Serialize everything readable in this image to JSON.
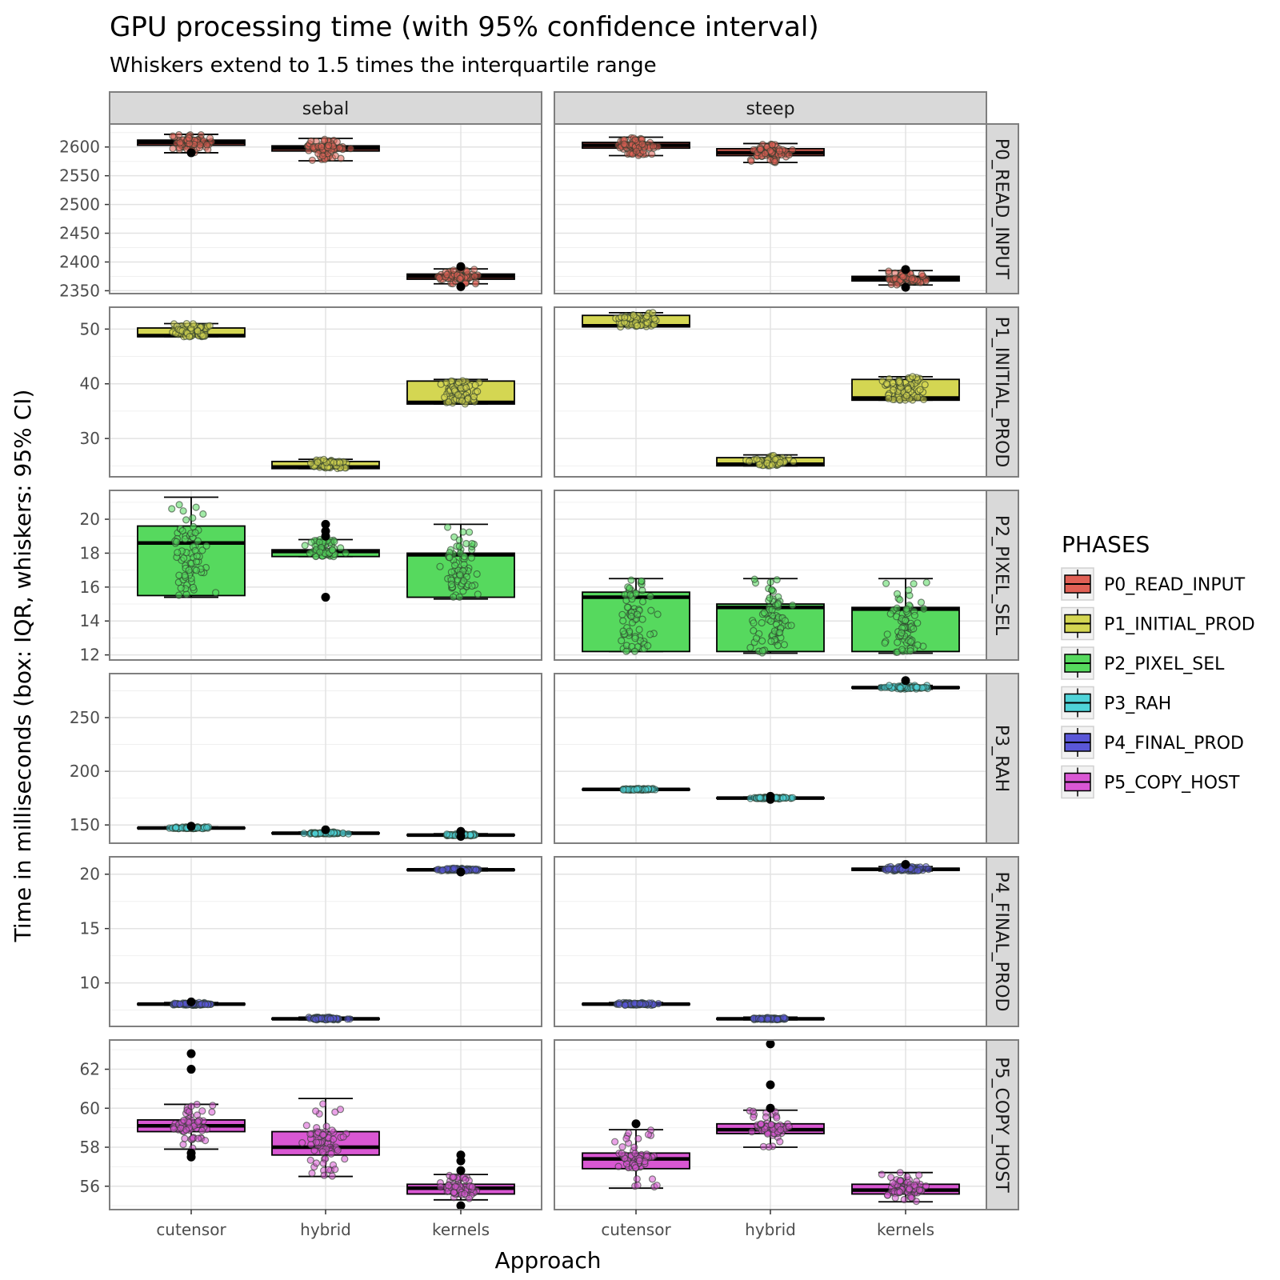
{
  "chart_data": {
    "type": "boxplot",
    "title": "GPU processing time (with 95% confidence interval)",
    "subtitle": "Whiskers extend to 1.5 times the interquartile range",
    "xlabel": "Approach",
    "ylabel": "Time in milliseconds (box: IQR, whiskers: 95% CI)",
    "legend": {
      "title": "PHASES",
      "position": "right"
    },
    "grid": true,
    "columns": [
      "sebal",
      "steep"
    ],
    "categories": [
      "cutensor",
      "hybrid",
      "kernels"
    ],
    "panels": [
      {
        "phase": "P0_READ_INPUT",
        "color": "#e06055",
        "ylim": [
          2345,
          2640
        ],
        "ticks": [
          2350,
          2400,
          2450,
          2500,
          2550,
          2600
        ],
        "data": {
          "sebal": [
            {
              "approach": "cutensor",
              "whisker_low": 2590,
              "q1": 2603,
              "median": 2608,
              "q3": 2612,
              "whisker_high": 2622,
              "outliers": [
                2590
              ]
            },
            {
              "approach": "hybrid",
              "whisker_low": 2576,
              "q1": 2593,
              "median": 2598,
              "q3": 2602,
              "whisker_high": 2615,
              "outliers": []
            },
            {
              "approach": "kernels",
              "whisker_low": 2362,
              "q1": 2370,
              "median": 2375,
              "q3": 2379,
              "whisker_high": 2388,
              "outliers": [
                2357,
                2392
              ]
            }
          ],
          "steep": [
            {
              "approach": "cutensor",
              "whisker_low": 2585,
              "q1": 2598,
              "median": 2603,
              "q3": 2608,
              "whisker_high": 2617,
              "outliers": []
            },
            {
              "approach": "hybrid",
              "whisker_low": 2573,
              "q1": 2585,
              "median": 2590,
              "q3": 2597,
              "whisker_high": 2606,
              "outliers": []
            },
            {
              "approach": "kernels",
              "whisker_low": 2360,
              "q1": 2367,
              "median": 2371,
              "q3": 2375,
              "whisker_high": 2385,
              "outliers": [
                2356,
                2387
              ]
            }
          ]
        }
      },
      {
        "phase": "P1_INITIAL_PROD",
        "color": "#d4d652",
        "ylim": [
          23,
          54
        ],
        "ticks": [
          30,
          40,
          50
        ],
        "data": {
          "sebal": [
            {
              "approach": "cutensor",
              "whisker_low": 48.6,
              "q1": 48.6,
              "median": 48.8,
              "q3": 50.2,
              "whisker_high": 51.0,
              "outliers": []
            },
            {
              "approach": "hybrid",
              "whisker_low": 24.5,
              "q1": 24.5,
              "median": 24.8,
              "q3": 25.8,
              "whisker_high": 26.2,
              "outliers": []
            },
            {
              "approach": "kernels",
              "whisker_low": 36.3,
              "q1": 36.3,
              "median": 36.6,
              "q3": 40.5,
              "whisker_high": 40.8,
              "outliers": []
            }
          ],
          "steep": [
            {
              "approach": "cutensor",
              "whisker_low": 50.4,
              "q1": 50.4,
              "median": 50.6,
              "q3": 52.5,
              "whisker_high": 53.0,
              "outliers": []
            },
            {
              "approach": "hybrid",
              "whisker_low": 25.0,
              "q1": 25.0,
              "median": 25.3,
              "q3": 26.5,
              "whisker_high": 27.0,
              "outliers": []
            },
            {
              "approach": "kernels",
              "whisker_low": 37.0,
              "q1": 37.0,
              "median": 37.4,
              "q3": 40.8,
              "whisker_high": 41.3,
              "outliers": []
            }
          ]
        }
      },
      {
        "phase": "P2_PIXEL_SEL",
        "color": "#56d95e",
        "ylim": [
          11.7,
          21.7
        ],
        "ticks": [
          12,
          14,
          16,
          18,
          20
        ],
        "data": {
          "sebal": [
            {
              "approach": "cutensor",
              "whisker_low": 15.4,
              "q1": 15.5,
              "median": 18.6,
              "q3": 19.6,
              "whisker_high": 21.3,
              "outliers": []
            },
            {
              "approach": "hybrid",
              "whisker_low": 17.8,
              "q1": 17.8,
              "median": 18.1,
              "q3": 18.2,
              "whisker_high": 18.8,
              "outliers": [
                15.4,
                19.0,
                19.3,
                19.7
              ]
            },
            {
              "approach": "kernels",
              "whisker_low": 15.3,
              "q1": 15.4,
              "median": 17.9,
              "q3": 18.0,
              "whisker_high": 19.7,
              "outliers": []
            }
          ],
          "steep": [
            {
              "approach": "cutensor",
              "whisker_low": 12.2,
              "q1": 12.2,
              "median": 15.4,
              "q3": 15.7,
              "whisker_high": 16.5,
              "outliers": []
            },
            {
              "approach": "hybrid",
              "whisker_low": 12.1,
              "q1": 12.2,
              "median": 14.8,
              "q3": 15.0,
              "whisker_high": 16.5,
              "outliers": []
            },
            {
              "approach": "kernels",
              "whisker_low": 12.1,
              "q1": 12.2,
              "median": 14.7,
              "q3": 14.8,
              "whisker_high": 16.5,
              "outliers": []
            }
          ]
        }
      },
      {
        "phase": "P3_RAH",
        "color": "#4fd3d8",
        "ylim": [
          133,
          291
        ],
        "ticks": [
          150,
          200,
          250
        ],
        "data": {
          "sebal": [
            {
              "approach": "cutensor",
              "whisker_low": 146.5,
              "q1": 146.8,
              "median": 147.2,
              "q3": 147.5,
              "whisker_high": 148.2,
              "outliers": [
                148.8
              ]
            },
            {
              "approach": "hybrid",
              "whisker_low": 141.6,
              "q1": 142.0,
              "median": 142.3,
              "q3": 142.7,
              "whisker_high": 143.4,
              "outliers": [
                145.5
              ]
            },
            {
              "approach": "kernels",
              "whisker_low": 139.8,
              "q1": 140.2,
              "median": 140.5,
              "q3": 141.0,
              "whisker_high": 141.8,
              "outliers": [
                144.0,
                139.3
              ]
            }
          ],
          "steep": [
            {
              "approach": "cutensor",
              "whisker_low": 182.4,
              "q1": 182.8,
              "median": 183.1,
              "q3": 183.4,
              "whisker_high": 184.0,
              "outliers": []
            },
            {
              "approach": "hybrid",
              "whisker_low": 174.3,
              "q1": 174.7,
              "median": 175.0,
              "q3": 175.4,
              "whisker_high": 176.0,
              "outliers": [
                176.7,
                173.8
              ]
            },
            {
              "approach": "kernels",
              "whisker_low": 276.5,
              "q1": 277.5,
              "median": 278.0,
              "q3": 278.6,
              "whisker_high": 280.0,
              "outliers": [
                284.5
              ]
            }
          ]
        }
      },
      {
        "phase": "P4_FINAL_PROD",
        "color": "#5a57d8",
        "ylim": [
          6.0,
          21.6
        ],
        "ticks": [
          10,
          15,
          20
        ],
        "data": {
          "sebal": [
            {
              "approach": "cutensor",
              "whisker_low": 7.95,
              "q1": 8.0,
              "median": 8.05,
              "q3": 8.1,
              "whisker_high": 8.2,
              "outliers": [
                8.25
              ]
            },
            {
              "approach": "hybrid",
              "whisker_low": 6.6,
              "q1": 6.65,
              "median": 6.7,
              "q3": 6.75,
              "whisker_high": 6.85,
              "outliers": []
            },
            {
              "approach": "kernels",
              "whisker_low": 20.3,
              "q1": 20.35,
              "median": 20.4,
              "q3": 20.45,
              "whisker_high": 20.55,
              "outliers": [
                20.2
              ]
            }
          ],
          "steep": [
            {
              "approach": "cutensor",
              "whisker_low": 7.95,
              "q1": 8.0,
              "median": 8.05,
              "q3": 8.1,
              "whisker_high": 8.2,
              "outliers": []
            },
            {
              "approach": "hybrid",
              "whisker_low": 6.6,
              "q1": 6.65,
              "median": 6.7,
              "q3": 6.75,
              "whisker_high": 6.85,
              "outliers": []
            },
            {
              "approach": "kernels",
              "whisker_low": 20.3,
              "q1": 20.35,
              "median": 20.45,
              "q3": 20.55,
              "whisker_high": 20.7,
              "outliers": [
                20.9
              ]
            }
          ]
        }
      },
      {
        "phase": "P5_COPY_HOST",
        "color": "#d957d3",
        "ylim": [
          54.8,
          63.5
        ],
        "ticks": [
          56,
          58,
          60,
          62
        ],
        "data": {
          "sebal": [
            {
              "approach": "cutensor",
              "whisker_low": 57.9,
              "q1": 58.8,
              "median": 59.1,
              "q3": 59.4,
              "whisker_high": 60.2,
              "outliers": [
                62.8,
                62.0,
                57.7,
                57.5
              ]
            },
            {
              "approach": "hybrid",
              "whisker_low": 56.5,
              "q1": 57.6,
              "median": 58.0,
              "q3": 58.8,
              "whisker_high": 60.5,
              "outliers": []
            },
            {
              "approach": "kernels",
              "whisker_low": 55.3,
              "q1": 55.6,
              "median": 55.9,
              "q3": 56.1,
              "whisker_high": 56.6,
              "outliers": [
                57.6,
                57.3,
                56.8,
                55.0
              ]
            }
          ],
          "steep": [
            {
              "approach": "cutensor",
              "whisker_low": 55.9,
              "q1": 56.9,
              "median": 57.4,
              "q3": 57.7,
              "whisker_high": 58.9,
              "outliers": [
                59.2
              ]
            },
            {
              "approach": "hybrid",
              "whisker_low": 58.0,
              "q1": 58.7,
              "median": 58.9,
              "q3": 59.2,
              "whisker_high": 59.9,
              "outliers": [
                63.3,
                61.2,
                60.0
              ]
            },
            {
              "approach": "kernels",
              "whisker_low": 55.2,
              "q1": 55.6,
              "median": 55.8,
              "q3": 56.1,
              "whisker_high": 56.7,
              "outliers": []
            }
          ]
        }
      }
    ]
  }
}
